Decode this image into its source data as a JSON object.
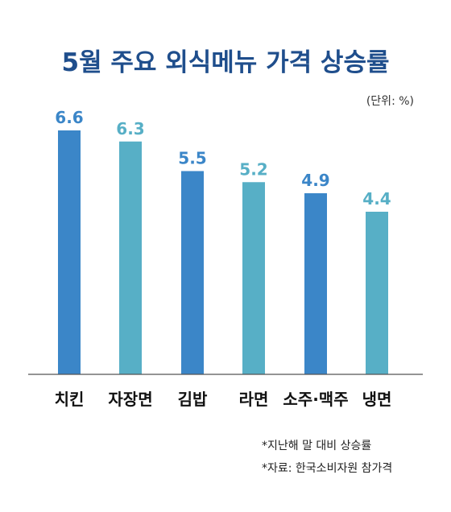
{
  "chart_data": {
    "type": "bar",
    "title": "5월 주요 외식메뉴 가격 상승률",
    "unit_label": "(단위: %)",
    "categories": [
      "치킨",
      "자장면",
      "김밥",
      "라면",
      "소주·맥주",
      "냉면"
    ],
    "values": [
      6.6,
      6.3,
      5.5,
      5.2,
      4.9,
      4.4
    ],
    "value_labels": [
      "6.6",
      "6.3",
      "5.5",
      "5.2",
      "4.9",
      "4.4"
    ],
    "ylim": [
      0,
      6.6
    ],
    "grid": false,
    "colors": [
      "#3b86c8",
      "#57afc6",
      "#3b86c8",
      "#57afc6",
      "#3b86c8",
      "#57afc6"
    ]
  },
  "notes": {
    "note1": "*지난해 말 대비 상승률",
    "note2": "*자료: 한국소비자원 참가격"
  }
}
